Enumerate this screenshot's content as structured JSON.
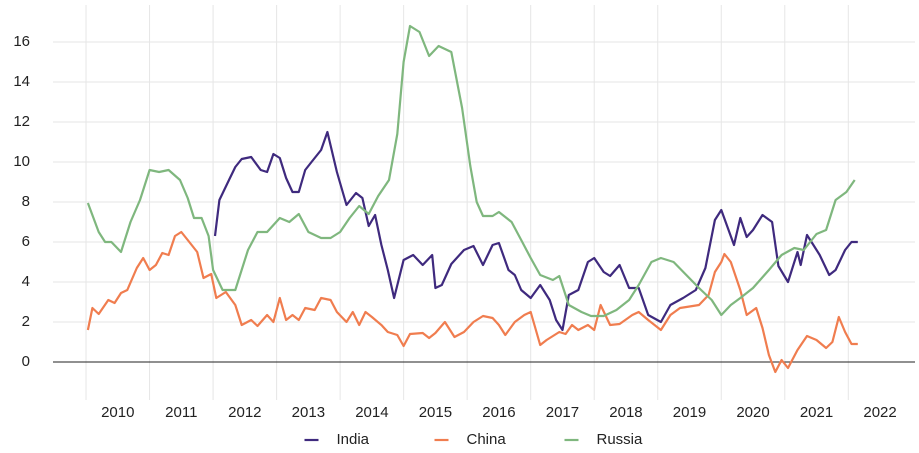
{
  "chart_data": {
    "type": "line",
    "xlim": [
      2009.48,
      2023.05
    ],
    "ylim": [
      -1.9,
      17.85
    ],
    "xticks": [
      2010,
      2011,
      2012,
      2013,
      2014,
      2015,
      2016,
      2017,
      2018,
      2019,
      2020,
      2021,
      2022
    ],
    "yticks": [
      0,
      2,
      4,
      6,
      8,
      10,
      12,
      14,
      16
    ],
    "grid": true,
    "legend": "bottom",
    "series": [
      {
        "name": "India",
        "color": "#3f2a7e",
        "x": [
          2012.03,
          2012.1,
          2012.25,
          2012.35,
          2012.45,
          2012.6,
          2012.75,
          2012.85,
          2012.95,
          2013.05,
          2013.15,
          2013.25,
          2013.35,
          2013.45,
          2013.55,
          2013.7,
          2013.8,
          2013.95,
          2014.1,
          2014.25,
          2014.35,
          2014.45,
          2014.55,
          2014.65,
          2014.75,
          2014.85,
          2015.0,
          2015.15,
          2015.3,
          2015.45,
          2015.5,
          2015.6,
          2015.75,
          2015.95,
          2016.1,
          2016.25,
          2016.4,
          2016.5,
          2016.65,
          2016.75,
          2016.85,
          2017.0,
          2017.15,
          2017.3,
          2017.4,
          2017.5,
          2017.6,
          2017.75,
          2017.9,
          2018.0,
          2018.15,
          2018.25,
          2018.4,
          2018.55,
          2018.7,
          2018.85,
          2019.05,
          2019.2,
          2019.4,
          2019.6,
          2019.75,
          2019.9,
          2020.0,
          2020.2,
          2020.3,
          2020.4,
          2020.5,
          2020.65,
          2020.8,
          2020.9,
          2021.05,
          2021.2,
          2021.25,
          2021.35,
          2021.45,
          2021.55,
          2021.7,
          2021.8,
          2021.95,
          2022.05,
          2022.15
        ],
        "values": [
          6.3,
          8.1,
          9.1,
          9.75,
          10.15,
          10.25,
          9.6,
          9.5,
          10.4,
          10.2,
          9.2,
          8.5,
          8.5,
          9.6,
          10.0,
          10.6,
          11.5,
          9.5,
          7.85,
          8.45,
          8.2,
          6.8,
          7.35,
          5.85,
          4.6,
          3.2,
          5.1,
          5.35,
          4.85,
          5.35,
          3.7,
          3.85,
          4.9,
          5.6,
          5.8,
          4.85,
          5.85,
          5.95,
          4.6,
          4.35,
          3.6,
          3.2,
          3.85,
          3.1,
          2.1,
          1.6,
          3.35,
          3.6,
          5.0,
          5.2,
          4.5,
          4.3,
          4.85,
          3.7,
          3.7,
          2.35,
          2.0,
          2.85,
          3.2,
          3.6,
          4.7,
          7.1,
          7.6,
          5.85,
          7.2,
          6.25,
          6.6,
          7.35,
          7.0,
          4.8,
          4.0,
          5.5,
          4.85,
          6.35,
          5.85,
          5.35,
          4.35,
          4.6,
          5.6,
          6.0,
          6.0
        ]
      },
      {
        "name": "China",
        "color": "#f07d4f",
        "x": [
          2010.03,
          2010.1,
          2010.2,
          2010.35,
          2010.45,
          2010.55,
          2010.65,
          2010.8,
          2010.9,
          2011.0,
          2011.1,
          2011.2,
          2011.3,
          2011.4,
          2011.5,
          2011.6,
          2011.75,
          2011.85,
          2011.97,
          2012.05,
          2012.2,
          2012.35,
          2012.45,
          2012.6,
          2012.7,
          2012.85,
          2012.95,
          2013.05,
          2013.15,
          2013.25,
          2013.35,
          2013.45,
          2013.6,
          2013.7,
          2013.85,
          2013.95,
          2014.1,
          2014.2,
          2014.3,
          2014.4,
          2014.5,
          2014.65,
          2014.75,
          2014.9,
          2015.0,
          2015.1,
          2015.3,
          2015.4,
          2015.5,
          2015.65,
          2015.8,
          2015.95,
          2016.1,
          2016.25,
          2016.4,
          2016.5,
          2016.6,
          2016.75,
          2016.9,
          2017.0,
          2017.15,
          2017.25,
          2017.45,
          2017.55,
          2017.65,
          2017.75,
          2017.9,
          2018.0,
          2018.1,
          2018.25,
          2018.4,
          2018.6,
          2018.7,
          2018.85,
          2019.05,
          2019.2,
          2019.35,
          2019.55,
          2019.65,
          2019.8,
          2019.9,
          2020.0,
          2020.05,
          2020.15,
          2020.3,
          2020.4,
          2020.55,
          2020.65,
          2020.75,
          2020.85,
          2020.95,
          2021.05,
          2021.2,
          2021.35,
          2021.5,
          2021.65,
          2021.75,
          2021.85,
          2021.95,
          2022.05,
          2022.15
        ],
        "values": [
          1.6,
          2.7,
          2.4,
          3.1,
          2.95,
          3.45,
          3.6,
          4.7,
          5.2,
          4.6,
          4.85,
          5.45,
          5.35,
          6.3,
          6.5,
          6.1,
          5.5,
          4.2,
          4.4,
          3.2,
          3.5,
          2.85,
          1.85,
          2.1,
          1.8,
          2.35,
          2.0,
          3.2,
          2.1,
          2.35,
          2.1,
          2.7,
          2.6,
          3.2,
          3.1,
          2.5,
          2.0,
          2.5,
          1.85,
          2.5,
          2.25,
          1.85,
          1.5,
          1.35,
          0.8,
          1.4,
          1.45,
          1.2,
          1.45,
          2.0,
          1.25,
          1.5,
          2.0,
          2.3,
          2.2,
          1.85,
          1.35,
          2.0,
          2.35,
          2.5,
          0.85,
          1.1,
          1.5,
          1.4,
          1.85,
          1.6,
          1.85,
          1.6,
          2.85,
          1.85,
          1.9,
          2.35,
          2.5,
          2.1,
          1.6,
          2.35,
          2.7,
          2.8,
          2.85,
          3.35,
          4.5,
          5.0,
          5.4,
          5.0,
          3.6,
          2.35,
          2.7,
          1.7,
          0.35,
          -0.5,
          0.1,
          -0.3,
          0.6,
          1.3,
          1.1,
          0.7,
          1.0,
          2.25,
          1.5,
          0.9,
          0.9
        ]
      },
      {
        "name": "Russia",
        "color": "#7fb77e",
        "x": [
          2010.03,
          2010.2,
          2010.3,
          2010.4,
          2010.55,
          2010.7,
          2010.85,
          2011.0,
          2011.15,
          2011.3,
          2011.48,
          2011.6,
          2011.7,
          2011.82,
          2011.93,
          2012.0,
          2012.15,
          2012.35,
          2012.55,
          2012.7,
          2012.85,
          2013.05,
          2013.2,
          2013.35,
          2013.5,
          2013.7,
          2013.85,
          2014.0,
          2014.15,
          2014.3,
          2014.45,
          2014.6,
          2014.77,
          2014.9,
          2015.0,
          2015.1,
          2015.25,
          2015.4,
          2015.55,
          2015.75,
          2015.92,
          2016.05,
          2016.15,
          2016.25,
          2016.4,
          2016.5,
          2016.7,
          2016.85,
          2017.0,
          2017.15,
          2017.35,
          2017.45,
          2017.6,
          2017.8,
          2017.95,
          2018.15,
          2018.35,
          2018.55,
          2018.7,
          2018.9,
          2019.05,
          2019.25,
          2019.45,
          2019.65,
          2019.85,
          2020.0,
          2020.15,
          2020.3,
          2020.5,
          2020.75,
          2020.95,
          2021.15,
          2021.3,
          2021.5,
          2021.65,
          2021.8,
          2021.97,
          2022.1
        ],
        "values": [
          7.95,
          6.5,
          6.0,
          6.0,
          5.5,
          7.0,
          8.1,
          9.6,
          9.5,
          9.6,
          9.1,
          8.2,
          7.2,
          7.2,
          6.3,
          4.6,
          3.6,
          3.6,
          5.6,
          6.5,
          6.5,
          7.2,
          7.0,
          7.4,
          6.5,
          6.2,
          6.2,
          6.5,
          7.2,
          7.8,
          7.4,
          8.3,
          9.1,
          11.4,
          15.0,
          16.8,
          16.5,
          15.3,
          15.8,
          15.5,
          12.7,
          9.8,
          8.0,
          7.3,
          7.3,
          7.5,
          7.0,
          6.1,
          5.2,
          4.35,
          4.1,
          4.3,
          2.85,
          2.5,
          2.3,
          2.3,
          2.6,
          3.1,
          3.85,
          5.0,
          5.2,
          5.0,
          4.35,
          3.7,
          3.1,
          2.35,
          2.85,
          3.2,
          3.7,
          4.6,
          5.35,
          5.7,
          5.6,
          6.4,
          6.6,
          8.1,
          8.5,
          9.1
        ]
      }
    ]
  }
}
